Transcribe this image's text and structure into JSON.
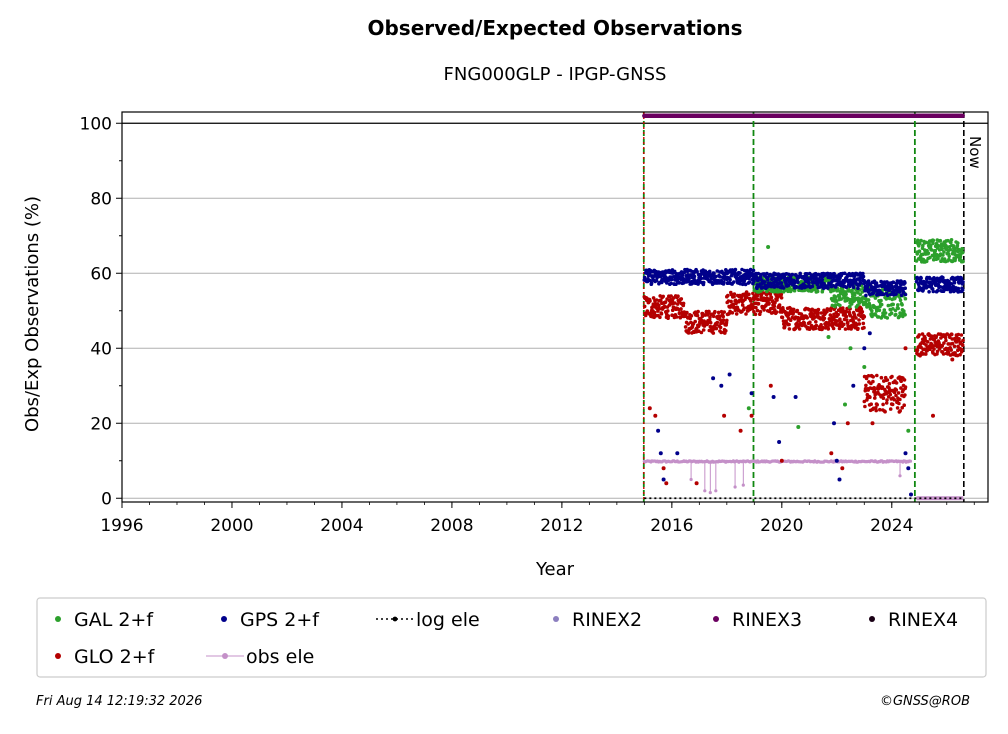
{
  "chart_data": {
    "type": "scatter",
    "title": "Observed/Expected Observations",
    "subtitle": "FNG000GLP - IPGP-GNSS",
    "xlabel": "Year",
    "ylabel": "Obs/Exp Observations (%)",
    "xlim": [
      1996,
      2027.5
    ],
    "ylim": [
      -1,
      103
    ],
    "x_ticks": [
      "1996",
      "2000",
      "2004",
      "2008",
      "2012",
      "2016",
      "2020",
      "2024"
    ],
    "y_ticks": [
      "0",
      "20",
      "40",
      "60",
      "80",
      "100"
    ],
    "grid": "horizontal",
    "now_label": "Now",
    "now_year": 2026.62,
    "event_lines": {
      "red": [
        2014.98
      ],
      "green": [
        2014.98,
        2018.97,
        2024.84
      ]
    },
    "series": [
      {
        "name": "GAL 2+f",
        "color": "#2ca02c",
        "segments": [
          {
            "x_start": 2019.0,
            "x_end": 2021.8,
            "y": 57,
            "spread": 2
          },
          {
            "x_start": 2021.8,
            "x_end": 2023.2,
            "y": 54,
            "spread": 3
          },
          {
            "x_start": 2023.2,
            "x_end": 2024.5,
            "y": 52,
            "spread": 4
          },
          {
            "x_start": 2024.9,
            "x_end": 2026.6,
            "y": 66,
            "spread": 3
          }
        ],
        "outliers": [
          [
            2019.5,
            67
          ],
          [
            2018.8,
            24
          ],
          [
            2020.6,
            19
          ],
          [
            2021.7,
            43
          ],
          [
            2022.5,
            40
          ],
          [
            2023.0,
            35
          ],
          [
            2024.6,
            18
          ],
          [
            2022.3,
            25
          ]
        ]
      },
      {
        "name": "GPS 2+f",
        "color": "#00008b",
        "segments": [
          {
            "x_start": 2015.0,
            "x_end": 2019.0,
            "y": 59,
            "spread": 2
          },
          {
            "x_start": 2019.0,
            "x_end": 2023.0,
            "y": 58,
            "spread": 2
          },
          {
            "x_start": 2023.0,
            "x_end": 2024.5,
            "y": 56,
            "spread": 2
          },
          {
            "x_start": 2024.9,
            "x_end": 2026.6,
            "y": 57,
            "spread": 2
          }
        ],
        "outliers": [
          [
            2015.5,
            18
          ],
          [
            2015.6,
            12
          ],
          [
            2015.7,
            5
          ],
          [
            2016.2,
            12
          ],
          [
            2017.5,
            32
          ],
          [
            2017.8,
            30
          ],
          [
            2018.1,
            33
          ],
          [
            2018.9,
            28
          ],
          [
            2019.7,
            27
          ],
          [
            2019.9,
            15
          ],
          [
            2020.5,
            27
          ],
          [
            2021.9,
            20
          ],
          [
            2022.0,
            10
          ],
          [
            2022.1,
            5
          ],
          [
            2022.6,
            30
          ],
          [
            2023.0,
            40
          ],
          [
            2023.2,
            44
          ],
          [
            2024.5,
            12
          ],
          [
            2024.6,
            8
          ],
          [
            2024.7,
            1
          ]
        ]
      },
      {
        "name": "GLO 2+f",
        "color": "#b40000",
        "segments": [
          {
            "x_start": 2015.0,
            "x_end": 2016.5,
            "y": 51,
            "spread": 3
          },
          {
            "x_start": 2016.5,
            "x_end": 2018.0,
            "y": 47,
            "spread": 3
          },
          {
            "x_start": 2018.0,
            "x_end": 2020.0,
            "y": 52,
            "spread": 3
          },
          {
            "x_start": 2020.0,
            "x_end": 2023.0,
            "y": 48,
            "spread": 3
          },
          {
            "x_start": 2023.0,
            "x_end": 2024.5,
            "y": 28,
            "spread": 5
          },
          {
            "x_start": 2024.9,
            "x_end": 2026.6,
            "y": 41,
            "spread": 3
          }
        ],
        "outliers": [
          [
            2015.2,
            24
          ],
          [
            2015.4,
            22
          ],
          [
            2015.7,
            8
          ],
          [
            2015.8,
            4
          ],
          [
            2016.9,
            4
          ],
          [
            2017.9,
            22
          ],
          [
            2018.5,
            18
          ],
          [
            2018.9,
            22
          ],
          [
            2019.6,
            30
          ],
          [
            2020.0,
            10
          ],
          [
            2021.8,
            12
          ],
          [
            2022.2,
            8
          ],
          [
            2022.4,
            20
          ],
          [
            2023.3,
            20
          ],
          [
            2024.5,
            40
          ],
          [
            2025.5,
            22
          ],
          [
            2026.2,
            37
          ]
        ]
      },
      {
        "name": "obs ele",
        "color": "#c490c8",
        "segments": [
          {
            "x_start": 2015.0,
            "x_end": 2024.7,
            "y": 9.8,
            "spread": 0.4
          }
        ],
        "drops": [
          [
            2016.7,
            5
          ],
          [
            2017.2,
            2
          ],
          [
            2017.4,
            1.5
          ],
          [
            2017.6,
            2
          ],
          [
            2018.3,
            3
          ],
          [
            2018.6,
            3.5
          ],
          [
            2024.3,
            6
          ]
        ]
      },
      {
        "name": "log ele",
        "color": "#000000",
        "x_start": 2015.0,
        "x_end": 2026.6,
        "y": 0
      },
      {
        "name": "RINEX2",
        "color": "#8c7fbf"
      },
      {
        "name": "RINEX3",
        "color": "#6b0060",
        "x_start": 2015.0,
        "x_end": 2026.6,
        "y": 102
      },
      {
        "name": "RINEX4",
        "color": "#1a0015"
      }
    ],
    "late_zero_segment": {
      "x_start": 2024.9,
      "x_end": 2026.6,
      "y": 0,
      "color": "#c490c8"
    }
  },
  "legend": {
    "placement": "bottom",
    "items": [
      {
        "label": "GAL 2+f",
        "color": "#2ca02c",
        "kind": "dot"
      },
      {
        "label": "GPS 2+f",
        "color": "#00008b",
        "kind": "dot"
      },
      {
        "label": "log ele",
        "color": "#000000",
        "kind": "dotline"
      },
      {
        "label": "RINEX2",
        "color": "#8c7fbf",
        "kind": "dot"
      },
      {
        "label": "RINEX3",
        "color": "#6b0060",
        "kind": "dot"
      },
      {
        "label": "RINEX4",
        "color": "#1a0015",
        "kind": "dot"
      },
      {
        "label": "GLO 2+f",
        "color": "#b40000",
        "kind": "dot"
      },
      {
        "label": "obs ele",
        "color": "#c490c8",
        "kind": "line"
      }
    ]
  },
  "footer": {
    "date": "Fri Aug 14 12:19:32 2026",
    "credit": "©GNSS@ROB"
  }
}
